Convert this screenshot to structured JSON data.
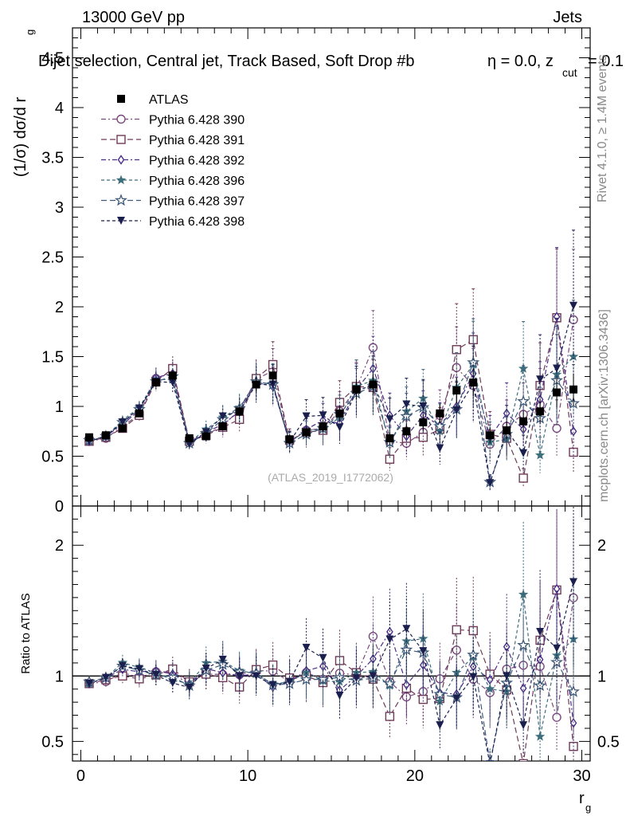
{
  "header": {
    "energy": "13000 GeV pp",
    "process": "Jets",
    "title": "Dijet selection, Central jet, Track Based, Soft Drop #b",
    "title_suffix": "η = 0.0, z",
    "title_sub": "cut",
    "title_end": "= 0.1",
    "side_rivet": "Rivet 4.1.0, ≥ 1.4M events",
    "side_mcplots": "mcplots.cern.ch [arXiv:1306.3436]",
    "analysis_id": "(ATLAS_2019_I1772062)"
  },
  "chart_data": [
    {
      "type": "scatter",
      "panel": "main",
      "ylabel": "(1/σ) dσ/d r",
      "ylabel_sub": "g",
      "xlim": [
        -0.5,
        30.5
      ],
      "ylim": [
        0,
        4.8
      ],
      "yticks": [
        0,
        0.5,
        1,
        1.5,
        2,
        2.5,
        3,
        3.5,
        4,
        4.5
      ],
      "ytick_labels": [
        "0",
        "0.5",
        "1",
        "1.5",
        "2",
        "2.5",
        "3",
        "3.5",
        "4",
        "4.5"
      ],
      "legend_position": "top-left",
      "x": [
        0.5,
        1.5,
        2.5,
        3.5,
        4.5,
        5.5,
        6.5,
        7.5,
        8.5,
        9.5,
        10.5,
        11.5,
        12.5,
        13.5,
        14.5,
        15.5,
        16.5,
        17.5,
        18.5,
        19.5,
        20.5,
        21.5,
        22.5,
        23.5,
        24.5,
        25.5,
        26.5,
        27.5,
        28.5,
        29.5
      ],
      "series": [
        {
          "name": "ATLAS",
          "marker": "square-filled",
          "color": "#000000",
          "dash": "none",
          "values": [
            0.69,
            0.71,
            0.78,
            0.93,
            1.24,
            1.31,
            0.68,
            0.7,
            0.8,
            0.95,
            1.22,
            1.31,
            0.67,
            0.74,
            0.8,
            0.93,
            1.17,
            1.22,
            0.68,
            0.75,
            0.84,
            0.93,
            1.16,
            1.24,
            0.71,
            0.76,
            0.85,
            0.95,
            1.14,
            1.17
          ]
        },
        {
          "name": "Pythia 6.428 390",
          "marker": "circle-open",
          "color": "#7a4a7e",
          "dash": "6,3,2,3",
          "values": [
            0.65,
            0.68,
            0.8,
            0.92,
            1.28,
            1.35,
            0.65,
            0.71,
            0.81,
            0.96,
            1.27,
            1.36,
            0.64,
            0.76,
            0.78,
            0.95,
            1.18,
            1.59,
            0.65,
            0.63,
            0.74,
            0.91,
            1.39,
            1.21,
            0.62,
            0.8,
            0.92,
            1.02,
            0.78,
            1.87
          ]
        },
        {
          "name": "Pythia 6.428 391",
          "marker": "square-open",
          "color": "#6e3a56",
          "dash": "7,4",
          "values": [
            0.65,
            0.69,
            0.78,
            0.91,
            1.25,
            1.38,
            0.65,
            0.71,
            0.79,
            0.87,
            1.28,
            1.42,
            0.66,
            0.74,
            0.76,
            1.04,
            1.2,
            1.19,
            0.47,
            0.68,
            0.69,
            0.77,
            1.57,
            1.67,
            0.72,
            0.68,
            0.28,
            1.21,
            1.89,
            0.54
          ]
        },
        {
          "name": "Pythia 6.428 392",
          "marker": "diamond-open",
          "color": "#4a2d86",
          "dash": "6,3,2,3",
          "values": [
            0.65,
            0.7,
            0.82,
            0.96,
            1.29,
            1.33,
            0.64,
            0.74,
            0.82,
            0.95,
            1.24,
            1.2,
            0.64,
            0.77,
            0.86,
            0.83,
            1.17,
            1.38,
            0.91,
            0.7,
            0.91,
            0.81,
            1.0,
            1.33,
            0.69,
            0.93,
            0.77,
            1.07,
            1.9,
            0.75
          ]
        },
        {
          "name": "Pythia 6.428 396",
          "marker": "star-filled",
          "color": "#3d6e7c",
          "dash": "4,3",
          "values": [
            0.65,
            0.7,
            0.86,
            0.99,
            1.27,
            1.27,
            0.64,
            0.77,
            0.89,
            0.99,
            1.24,
            1.23,
            0.64,
            0.76,
            0.77,
            0.89,
            1.2,
            1.26,
            0.63,
            0.95,
            1.08,
            0.75,
            1.19,
            1.42,
            0.64,
            0.67,
            1.38,
            0.51,
            1.32,
            1.5
          ]
        },
        {
          "name": "Pythia 6.428 397",
          "marker": "star-open",
          "color": "#3f5a78",
          "dash": "7,4",
          "values": [
            0.66,
            0.7,
            0.84,
            0.97,
            1.25,
            1.3,
            0.63,
            0.73,
            0.87,
            0.98,
            1.25,
            1.22,
            0.63,
            0.72,
            0.78,
            0.92,
            1.13,
            1.2,
            0.64,
            0.9,
            0.99,
            0.8,
            0.97,
            1.44,
            0.24,
            0.72,
            1.05,
            0.88,
            1.26,
            1.03
          ]
        },
        {
          "name": "Pythia 6.428 398",
          "marker": "triangle-down-filled",
          "color": "#1a1f4e",
          "dash": "4,3",
          "values": [
            0.65,
            0.7,
            0.84,
            0.98,
            1.25,
            1.24,
            0.62,
            0.74,
            0.9,
            0.95,
            1.22,
            1.22,
            0.64,
            0.9,
            0.91,
            0.79,
            1.15,
            1.22,
            0.87,
            1.02,
            1.0,
            0.58,
            0.96,
            1.23,
            0.23,
            0.76,
            0.53,
            1.27,
            1.38,
            2.01
          ]
        }
      ]
    },
    {
      "type": "scatter",
      "panel": "ratio",
      "ylabel": "Ratio to ATLAS",
      "xlabel": "r",
      "xlabel_sub": "g",
      "xlim": [
        -0.5,
        30.5
      ],
      "ylim": [
        0.35,
        2.3
      ],
      "yticks": [
        0.5,
        1,
        2
      ],
      "ytick_labels": [
        "0.5",
        "1",
        "2"
      ],
      "xticks": [
        0,
        10,
        20,
        30
      ],
      "xtick_labels": [
        "0",
        "10",
        "20",
        "30"
      ],
      "reference_line": 1
    }
  ]
}
